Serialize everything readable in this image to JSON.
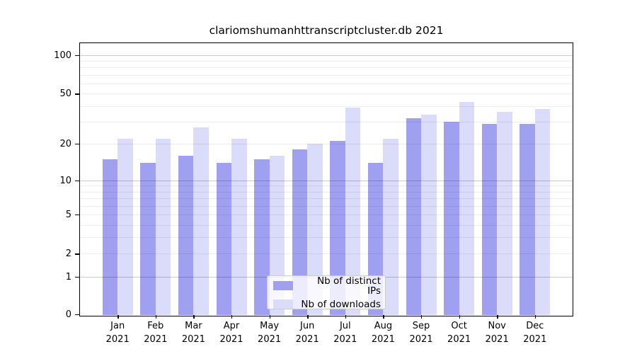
{
  "title": "clariomshumanhttranscriptcluster.db 2021",
  "chart_data": {
    "type": "bar",
    "title": "clariomshumanhttranscriptcluster.db 2021",
    "categories": [
      {
        "month": "Jan",
        "year": "2021"
      },
      {
        "month": "Feb",
        "year": "2021"
      },
      {
        "month": "Mar",
        "year": "2021"
      },
      {
        "month": "Apr",
        "year": "2021"
      },
      {
        "month": "May",
        "year": "2021"
      },
      {
        "month": "Jun",
        "year": "2021"
      },
      {
        "month": "Jul",
        "year": "2021"
      },
      {
        "month": "Aug",
        "year": "2021"
      },
      {
        "month": "Sep",
        "year": "2021"
      },
      {
        "month": "Oct",
        "year": "2021"
      },
      {
        "month": "Nov",
        "year": "2021"
      },
      {
        "month": "Dec",
        "year": "2021"
      }
    ],
    "series": [
      {
        "name": "Nb of distinct IPs",
        "color": "#a0a0f0",
        "values": [
          15,
          14,
          16,
          14,
          15,
          18,
          21,
          14,
          32,
          30,
          29,
          29
        ]
      },
      {
        "name": "Nb of downloads",
        "color": "#dbdbfa",
        "values": [
          22,
          22,
          27,
          22,
          16,
          20,
          39,
          22,
          34,
          43,
          36,
          38
        ]
      }
    ],
    "y_scale": "log10(value+1)",
    "y_ticks": [
      100,
      50,
      20,
      10,
      5,
      2,
      1,
      0
    ],
    "gridlines": {
      "major_values": [
        1,
        10,
        100
      ],
      "minor_values": [
        2,
        3,
        4,
        5,
        6,
        7,
        8,
        9,
        20,
        30,
        40,
        50,
        60,
        70,
        80,
        90
      ]
    },
    "ylim": [
      0,
      125
    ],
    "grid": true,
    "legend_position": "bottom-center"
  }
}
